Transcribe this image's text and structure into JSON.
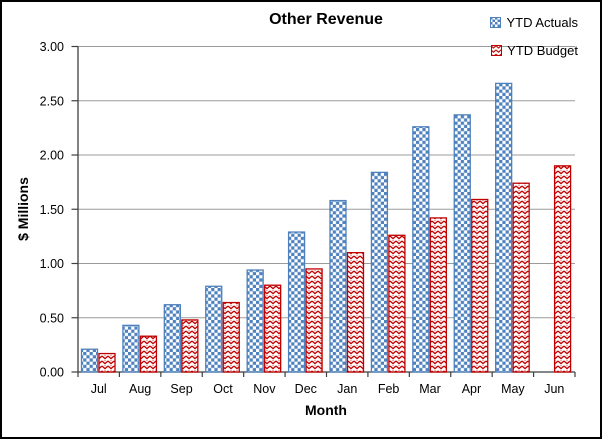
{
  "chart_data": {
    "type": "bar",
    "title": "Other Revenue",
    "xlabel": "Month",
    "ylabel": "$ Millions",
    "categories": [
      "Jul",
      "Aug",
      "Sep",
      "Oct",
      "Nov",
      "Dec",
      "Jan",
      "Feb",
      "Mar",
      "Apr",
      "May",
      "Jun"
    ],
    "series": [
      {
        "name": "YTD Actuals",
        "color": "#4E81BD",
        "pattern": "checkerboard",
        "values": [
          0.21,
          0.43,
          0.62,
          0.79,
          0.94,
          1.29,
          1.58,
          1.84,
          2.26,
          2.37,
          2.66,
          null
        ]
      },
      {
        "name": "YTD Budget",
        "color": "#C00000",
        "pattern": "weave",
        "values": [
          0.17,
          0.33,
          0.48,
          0.64,
          0.8,
          0.95,
          1.1,
          1.26,
          1.42,
          1.59,
          1.74,
          1.9
        ]
      }
    ],
    "ylim": [
      0,
      3
    ],
    "ytick_step": 0.5,
    "ytick_labels": [
      "0.00",
      "0.50",
      "1.00",
      "1.50",
      "2.00",
      "2.50",
      "3.00"
    ],
    "grid": true,
    "legend_position": "top-right",
    "colors": {
      "gridline": "#9B9B9B",
      "axis": "#3F3F3F",
      "text": "#000000",
      "background": "#FFFFFF",
      "frame": "#000000"
    }
  }
}
